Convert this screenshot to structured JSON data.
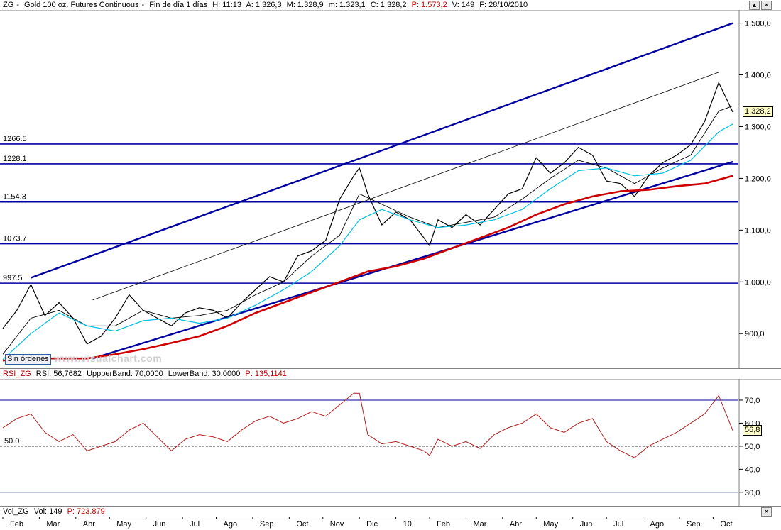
{
  "main": {
    "header": {
      "symbol": "ZG",
      "name": "Gold 100 oz. Futures Continuous",
      "timeframe": "Fin de día 1 días",
      "high": "H: 11:13",
      "open": "A: 1.326,3",
      "max": "M: 1.328,9",
      "min": "m: 1.323,1",
      "close": "C: 1.328,2",
      "p": "P: 1.573,2",
      "v": "V: 149",
      "date": "F: 28/10/2010"
    },
    "orders_button": "Sin órdenes",
    "watermark": "www.visualchart.com",
    "last_value": "1.328,2"
  },
  "rsi": {
    "header": {
      "name": "RSI_ZG",
      "rsi": "RSI: 56,7682",
      "upper": "UppperBand: 70,0000",
      "lower": "LowerBand: 30,0000",
      "p": "P: 135,1141"
    },
    "last_value": "56,8",
    "mid_label": "50.0"
  },
  "vol": {
    "header": {
      "name": "Vol_ZG",
      "vol": "Vol: 149",
      "p": "P: 723.879"
    }
  },
  "colors": {
    "price": "#000000",
    "ma_fast": "#000000",
    "ma_mid": "#00c0e0",
    "ma_slow": "#d00000",
    "channel": "#0000a0",
    "rsi": "#b02020"
  },
  "chart_data": [
    {
      "type": "line",
      "title": "",
      "ylim": [
        840,
        1520
      ],
      "y_ticks": [
        "900,0",
        "1.000,0",
        "1.100,0",
        "1.200,0",
        "1.300,0",
        "1.400,0",
        "1.500,0"
      ],
      "y_tick_values": [
        900,
        1000,
        1100,
        1200,
        1300,
        1400,
        1500
      ],
      "x_ticks": [
        "Feb",
        "Mar",
        "Abr",
        "May",
        "Jun",
        "Jul",
        "Ago",
        "Sep",
        "Oct",
        "Nov",
        "Dic",
        "10",
        "Feb",
        "Mar",
        "Abr",
        "May",
        "Jun",
        "Jul",
        "Ago",
        "Sep",
        "Oct"
      ],
      "x_tick_index": [
        0,
        13,
        26,
        38,
        51,
        64,
        76,
        89,
        102,
        114,
        127,
        140,
        152,
        165,
        178,
        190,
        203,
        215,
        228,
        241,
        253
      ],
      "horizontal_levels": [
        {
          "label": "1266.5",
          "value": 1266.5
        },
        {
          "label": "1228.1",
          "value": 1228.1
        },
        {
          "label": "1154.3",
          "value": 1154.3
        },
        {
          "label": "1073.7",
          "value": 1073.7
        },
        {
          "label": "997.5",
          "value": 997.5
        }
      ],
      "series": [
        {
          "role": "close",
          "x": [
            0,
            5,
            10,
            15,
            20,
            25,
            30,
            35,
            40,
            45,
            50,
            55,
            60,
            65,
            70,
            75,
            80,
            85,
            90,
            95,
            100,
            105,
            110,
            115,
            120,
            125,
            127,
            130,
            135,
            140,
            145,
            150,
            152,
            155,
            160,
            165,
            170,
            175,
            180,
            185,
            190,
            195,
            200,
            205,
            210,
            215,
            220,
            225,
            230,
            235,
            240,
            245,
            250,
            255,
            260
          ],
          "values": [
            910,
            945,
            995,
            935,
            960,
            930,
            880,
            895,
            930,
            975,
            945,
            930,
            915,
            940,
            950,
            945,
            930,
            960,
            985,
            1010,
            1000,
            1050,
            1060,
            1080,
            1160,
            1205,
            1220,
            1170,
            1110,
            1135,
            1120,
            1085,
            1070,
            1120,
            1105,
            1130,
            1110,
            1140,
            1170,
            1180,
            1240,
            1210,
            1230,
            1260,
            1245,
            1195,
            1190,
            1165,
            1205,
            1230,
            1245,
            1265,
            1310,
            1385,
            1328
          ]
        },
        {
          "role": "moving-average-fast",
          "x": [
            0,
            10,
            20,
            30,
            40,
            50,
            60,
            70,
            80,
            90,
            100,
            110,
            120,
            127,
            135,
            145,
            155,
            165,
            175,
            185,
            195,
            205,
            215,
            225,
            235,
            245,
            255,
            260
          ],
          "values": [
            860,
            930,
            945,
            915,
            915,
            945,
            930,
            935,
            945,
            975,
            1000,
            1050,
            1090,
            1170,
            1150,
            1125,
            1105,
            1115,
            1125,
            1160,
            1200,
            1235,
            1220,
            1190,
            1220,
            1245,
            1330,
            1340
          ]
        },
        {
          "role": "moving-average-mid",
          "x": [
            0,
            10,
            20,
            30,
            40,
            50,
            60,
            70,
            80,
            90,
            100,
            110,
            120,
            127,
            135,
            145,
            155,
            165,
            175,
            185,
            195,
            205,
            215,
            225,
            235,
            245,
            255,
            260
          ],
          "values": [
            850,
            900,
            940,
            915,
            905,
            925,
            930,
            920,
            930,
            955,
            985,
            1020,
            1070,
            1120,
            1140,
            1120,
            1105,
            1110,
            1120,
            1140,
            1180,
            1215,
            1220,
            1205,
            1210,
            1235,
            1290,
            1305
          ]
        },
        {
          "role": "moving-average-slow",
          "x": [
            0,
            10,
            20,
            30,
            40,
            50,
            60,
            70,
            80,
            90,
            100,
            110,
            120,
            130,
            140,
            150,
            160,
            170,
            180,
            190,
            200,
            210,
            220,
            230,
            240,
            250,
            260
          ],
          "values": [
            848,
            852,
            852,
            852,
            860,
            870,
            882,
            895,
            915,
            940,
            960,
            980,
            1000,
            1020,
            1030,
            1045,
            1065,
            1085,
            1105,
            1130,
            1150,
            1165,
            1175,
            1178,
            1185,
            1190,
            1205
          ]
        }
      ],
      "channel_lines": [
        {
          "role": "upper-channel",
          "x": [
            10,
            260
          ],
          "values": [
            1008,
            1500
          ]
        },
        {
          "role": "lower-channel",
          "x": [
            32,
            260
          ],
          "values": [
            852,
            1232
          ]
        },
        {
          "role": "mid-channel",
          "x": [
            32,
            255
          ],
          "values": [
            965,
            1405
          ]
        }
      ]
    },
    {
      "type": "line",
      "title": "",
      "ylim": [
        25,
        78
      ],
      "y_ticks": [
        "30,0",
        "40,0",
        "50,0",
        "60,0",
        "70,0"
      ],
      "y_tick_values": [
        30,
        40,
        50,
        60,
        70
      ],
      "bands": [
        70,
        50,
        30
      ],
      "series": [
        {
          "role": "rsi",
          "x": [
            0,
            5,
            10,
            15,
            20,
            25,
            30,
            35,
            40,
            45,
            50,
            55,
            60,
            65,
            70,
            75,
            80,
            85,
            90,
            95,
            100,
            105,
            110,
            115,
            120,
            125,
            127,
            130,
            135,
            140,
            145,
            150,
            152,
            155,
            160,
            165,
            170,
            175,
            180,
            185,
            190,
            195,
            200,
            205,
            210,
            215,
            220,
            225,
            230,
            235,
            240,
            245,
            250,
            255,
            260
          ],
          "values": [
            58,
            62,
            64,
            56,
            52,
            55,
            48,
            50,
            52,
            57,
            60,
            54,
            48,
            53,
            55,
            54,
            52,
            57,
            61,
            63,
            60,
            62,
            65,
            63,
            68,
            73,
            73,
            55,
            51,
            52,
            50,
            48,
            46,
            53,
            50,
            52,
            49,
            55,
            58,
            60,
            64,
            58,
            56,
            60,
            62,
            52,
            48,
            45,
            50,
            53,
            56,
            60,
            64,
            72,
            56.8
          ]
        }
      ]
    }
  ]
}
